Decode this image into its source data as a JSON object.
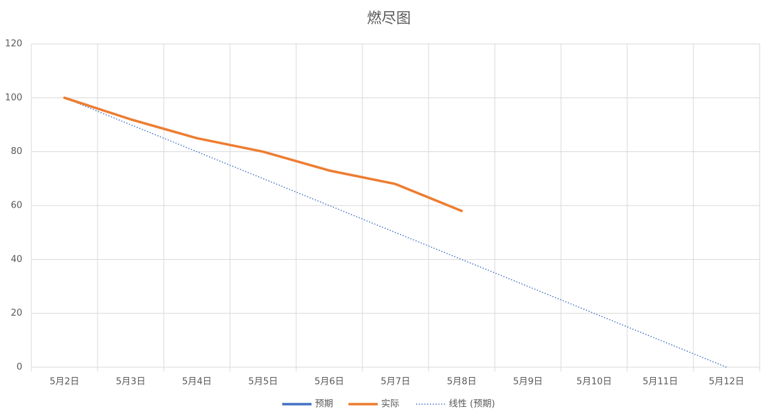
{
  "chart_data": {
    "type": "line",
    "title": "燃尽图",
    "categories": [
      "5月2日",
      "5月3日",
      "5月4日",
      "5月5日",
      "5月6日",
      "5月7日",
      "5月8日",
      "5月9日",
      "5月10日",
      "5月11日",
      "5月12日"
    ],
    "series": [
      {
        "name": "预期",
        "color": "#4472c4",
        "values": [
          100,
          90,
          80,
          70,
          60,
          50,
          40,
          30,
          20,
          10,
          0
        ]
      },
      {
        "name": "实际",
        "color": "#ed7d31",
        "values": [
          100,
          92,
          85,
          80,
          73,
          68,
          58,
          null,
          null,
          null,
          null
        ]
      }
    ],
    "trendline": {
      "name": "线性 (预期)",
      "color": "#4472c4"
    },
    "ylim": [
      0,
      120
    ],
    "yticks": [
      0,
      20,
      40,
      60,
      80,
      100,
      120
    ],
    "grid": true,
    "legend": "bottom"
  }
}
